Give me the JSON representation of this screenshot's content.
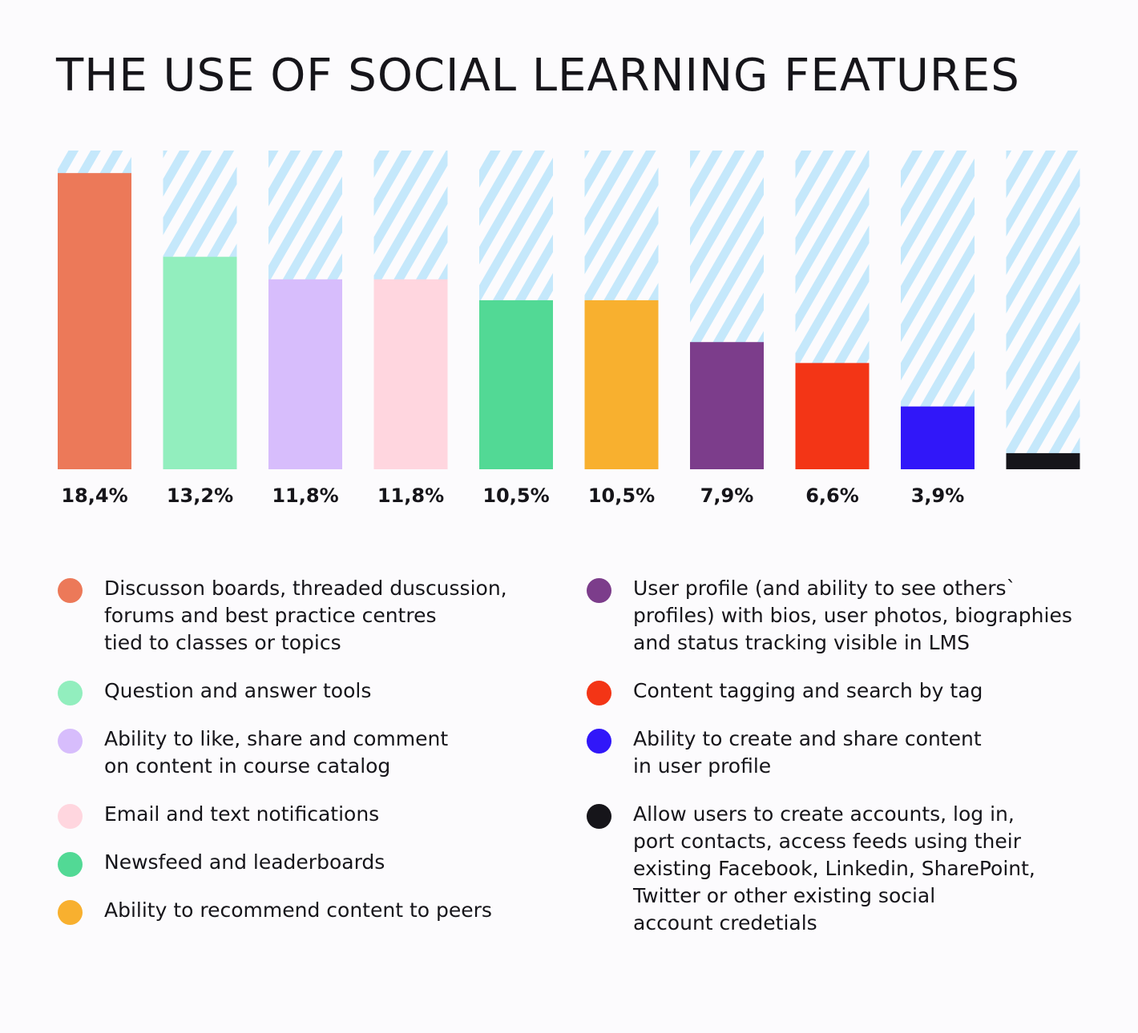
{
  "title": "THE USE OF SOCIAL LEARNING FEATURES",
  "chart_data": {
    "type": "bar",
    "categories": [
      "Discusson boards, threaded duscussion,\nforums and best practice centres\ntied to classes or topics",
      "Question and answer tools",
      "Ability to like, share and comment\non content in course catalog",
      "Email and text notifications",
      "Newsfeed and leaderboards",
      "Ability to recommend content to peers",
      "User profile (and ability to see others`\nprofiles) with bios, user photos, biographies\nand status tracking visible in LMS",
      "Content tagging and search by tag",
      "Ability to create and share content\nin user profile",
      "Allow users to create accounts, log in,\nport contacts, access feeds using their\nexisting Facebook, Linkedin, SharePoint,\nTwitter or other existing social\naccount credetials"
    ],
    "values": [
      18.4,
      13.2,
      11.8,
      11.8,
      10.5,
      10.5,
      7.9,
      6.6,
      3.9,
      1.0
    ],
    "value_labels": [
      "18,4%",
      "13,2%",
      "11,8%",
      "11,8%",
      "10,5%",
      "10,5%",
      "7,9%",
      "6,6%",
      "3,9%",
      ""
    ],
    "colors": [
      "#ec7959",
      "#92eebe",
      "#d7bdfc",
      "#ffd6df",
      "#52d995",
      "#f8b02f",
      "#7c3d8b",
      "#f33516",
      "#3117f9",
      "#16151a"
    ],
    "ylim": [
      0,
      19.8
    ],
    "background_pattern": "light-blue diagonal stripes",
    "pattern_color": "#c5e8fb",
    "legend_position": "bottom, two columns"
  },
  "legend": {
    "left": [
      0,
      1,
      2,
      3,
      4,
      5
    ],
    "right": [
      6,
      7,
      8,
      9
    ]
  }
}
